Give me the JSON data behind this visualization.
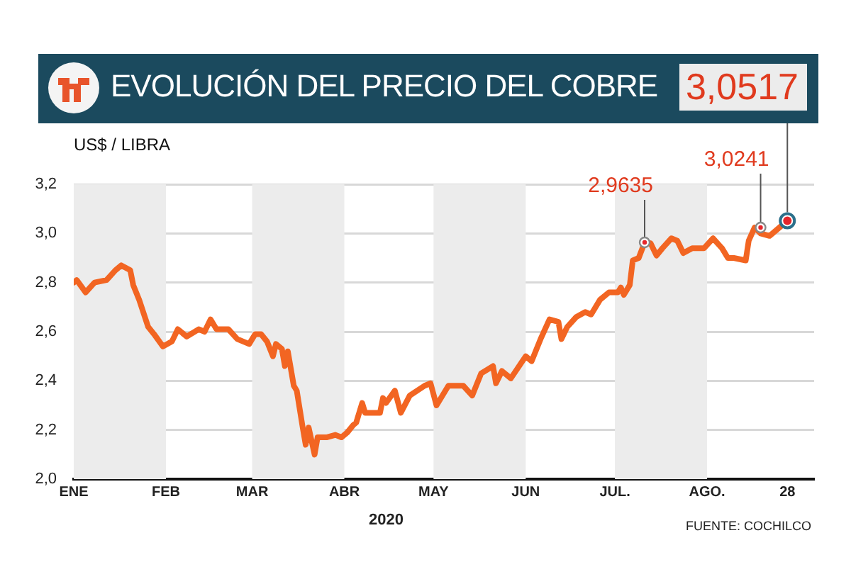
{
  "chart_data": {
    "type": "line",
    "title": "EVOLUCIÓN DEL PRECIO DEL COBRE",
    "ylabel": "US$ / LIBRA",
    "xlabel": "2020",
    "x": [
      "--01-01",
      "--01-02",
      "--01-05",
      "--01-08",
      "--01-12",
      "--01-15",
      "--01-17",
      "--01-20",
      "--01-21",
      "--01-23",
      "--01-26",
      "--01-28",
      "--01-31",
      "--02-03",
      "--02-05",
      "--02-08",
      "--02-12",
      "--02-14",
      "--02-16",
      "--02-18",
      "--02-22",
      "--02-25",
      "--02-27",
      "--02-29",
      "--03-02",
      "--03-04",
      "--03-06",
      "--03-08",
      "--03-09",
      "--03-11",
      "--03-12",
      "--03-13",
      "--03-15",
      "--03-16",
      "--03-18",
      "--03-19",
      "--03-20",
      "--03-22",
      "--03-23",
      "--03-26",
      "--03-29",
      "--03-31",
      "--04-02",
      "--04-04",
      "--04-05",
      "--04-07",
      "--04-08",
      "--04-10",
      "--04-13",
      "--04-14",
      "--04-15",
      "--04-18",
      "--04-20",
      "--04-23",
      "--04-28",
      "--04-30",
      "--05-02",
      "--05-06",
      "--05-11",
      "--05-14",
      "--05-17",
      "--05-21",
      "--05-22",
      "--05-24",
      "--05-27",
      "--06-01",
      "--06-03",
      "--06-06",
      "--06-09",
      "--06-12",
      "--06-13",
      "--06-15",
      "--06-18",
      "--06-21",
      "--06-23",
      "--06-26",
      "--06-29",
      "--07-02",
      "--07-03",
      "--07-04",
      "--07-06",
      "--07-07",
      "--07-09",
      "--07-11",
      "--07-13",
      "--07-15",
      "--07-17",
      "--07-20",
      "--07-22",
      "--07-24",
      "--07-27",
      "--07-31",
      "--08-03",
      "--08-06",
      "--08-08",
      "--08-10",
      "--08-14",
      "--08-15",
      "--08-17",
      "--08-19",
      "--08-22",
      "--08-23",
      "--08-28"
    ],
    "series": [
      {
        "color": "#f26522",
        "values": [
          2.8,
          2.81,
          2.76,
          2.8,
          2.81,
          2.85,
          2.87,
          2.85,
          2.79,
          2.73,
          2.62,
          2.59,
          2.54,
          2.56,
          2.61,
          2.58,
          2.61,
          2.6,
          2.65,
          2.61,
          2.61,
          2.57,
          2.56,
          2.55,
          2.59,
          2.59,
          2.56,
          2.5,
          2.55,
          2.53,
          2.46,
          2.52,
          2.38,
          2.36,
          2.21,
          2.14,
          2.21,
          2.1,
          2.17,
          2.17,
          2.18,
          2.17,
          2.19,
          2.22,
          2.23,
          2.31,
          2.27,
          2.27,
          2.27,
          2.33,
          2.31,
          2.36,
          2.27,
          2.34,
          2.38,
          2.39,
          2.3,
          2.38,
          2.38,
          2.34,
          2.43,
          2.46,
          2.39,
          2.44,
          2.41,
          2.5,
          2.48,
          2.57,
          2.65,
          2.64,
          2.57,
          2.62,
          2.66,
          2.68,
          2.67,
          2.73,
          2.76,
          2.76,
          2.78,
          2.75,
          2.79,
          2.89,
          2.9,
          2.9635,
          2.96,
          2.91,
          2.94,
          2.98,
          2.97,
          2.92,
          2.94,
          2.94,
          2.98,
          2.94,
          2.9,
          2.9,
          2.89,
          2.97,
          3.0241,
          3.0,
          2.99,
          3.0,
          3.0517
        ]
      }
    ],
    "xlim": [
      "--01-01",
      "--09-06"
    ],
    "xticks": [
      {
        "value": "--01-01",
        "label": "ENE"
      },
      {
        "value": "--02-01",
        "label": "FEB"
      },
      {
        "value": "--03-01",
        "label": "MAR"
      },
      {
        "value": "--04-01",
        "label": "ABR"
      },
      {
        "value": "--05-01",
        "label": "MAY"
      },
      {
        "value": "--06-01",
        "label": "JUN"
      },
      {
        "value": "--07-01",
        "label": "JUL."
      },
      {
        "value": "--08-01",
        "label": "AGO."
      },
      {
        "value": "--08-28",
        "label": "28"
      }
    ],
    "ylim": [
      2.0,
      3.2
    ],
    "yticks": [
      {
        "value": 2.0,
        "label": "2,0"
      },
      {
        "value": 2.2,
        "label": "2,2"
      },
      {
        "value": 2.4,
        "label": "2,4"
      },
      {
        "value": 2.6,
        "label": "2,6"
      },
      {
        "value": 2.8,
        "label": "2,8"
      },
      {
        "value": 3.0,
        "label": "3,0"
      },
      {
        "value": 3.2,
        "label": "3,2"
      }
    ],
    "bands": [
      {
        "axis": "x",
        "from": "--01-01",
        "to": "--02-01",
        "color": "#ececec"
      },
      {
        "axis": "x",
        "from": "--03-01",
        "to": "--04-01",
        "color": "#ececec"
      },
      {
        "axis": "x",
        "from": "--05-01",
        "to": "--06-01",
        "color": "#ececec"
      },
      {
        "axis": "x",
        "from": "--07-01",
        "to": "--08-01",
        "color": "#ececec"
      }
    ],
    "annotations": [
      {
        "text": "2,9635",
        "x": "--07-11",
        "y": 2.9635
      },
      {
        "text": "3,0241",
        "x": "--08-19",
        "y": 3.0241
      },
      {
        "text": "3,0517",
        "x": "--08-28",
        "y": 3.0517
      },
      "FUENTE: COCHILCO"
    ],
    "grid": "y",
    "legend": false,
    "marker": "none",
    "line_style": "solid"
  }
}
